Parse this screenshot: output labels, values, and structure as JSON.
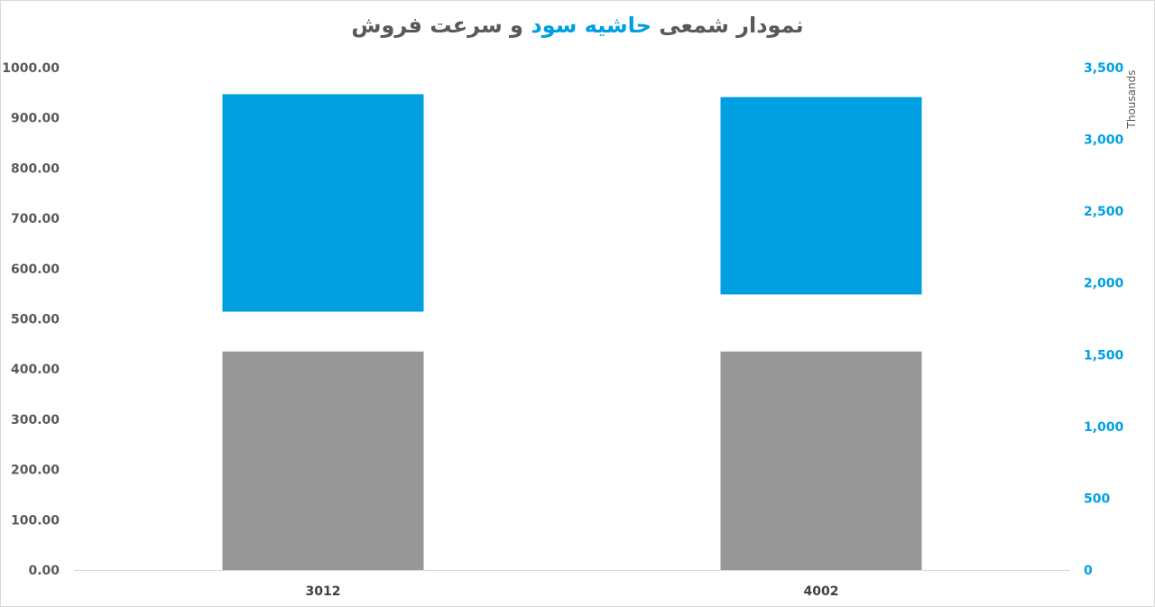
{
  "chart_data": {
    "type": "bar",
    "title_parts": [
      {
        "text": "نمودار شمعی ",
        "highlight": false
      },
      {
        "text": "حاشیه سود",
        "highlight": true
      },
      {
        "text": " و سرعت فروش",
        "highlight": false
      }
    ],
    "categories": [
      "3012",
      "4002"
    ],
    "left_axis": {
      "ylim": [
        0,
        1000
      ],
      "ticks": [
        "0.00",
        "100.00",
        "200.00",
        "300.00",
        "400.00",
        "500.00",
        "600.00",
        "700.00",
        "800.00",
        "900.00",
        "1000.00"
      ]
    },
    "right_axis": {
      "ylim": [
        0,
        3500
      ],
      "unit_label": "Thousands",
      "ticks": [
        "0",
        "500",
        "1,000",
        "1,500",
        "2,000",
        "2,500",
        "3,000",
        "3,500"
      ]
    },
    "series": [
      {
        "axis": "left",
        "kind": "bar",
        "values": [
          435,
          435
        ]
      },
      {
        "axis": "right",
        "kind": "floating-bar",
        "ranges": [
          [
            1800,
            3315
          ],
          [
            1920,
            3295
          ]
        ]
      }
    ],
    "grid": false,
    "legend": "none"
  },
  "colors": {
    "gray_bar": "#979797",
    "blue_bar": "#009fe0",
    "title_text": "#595959",
    "title_highlight": "#009fe3",
    "right_axis_text": "#00a0e3",
    "left_axis_text": "#595959"
  }
}
